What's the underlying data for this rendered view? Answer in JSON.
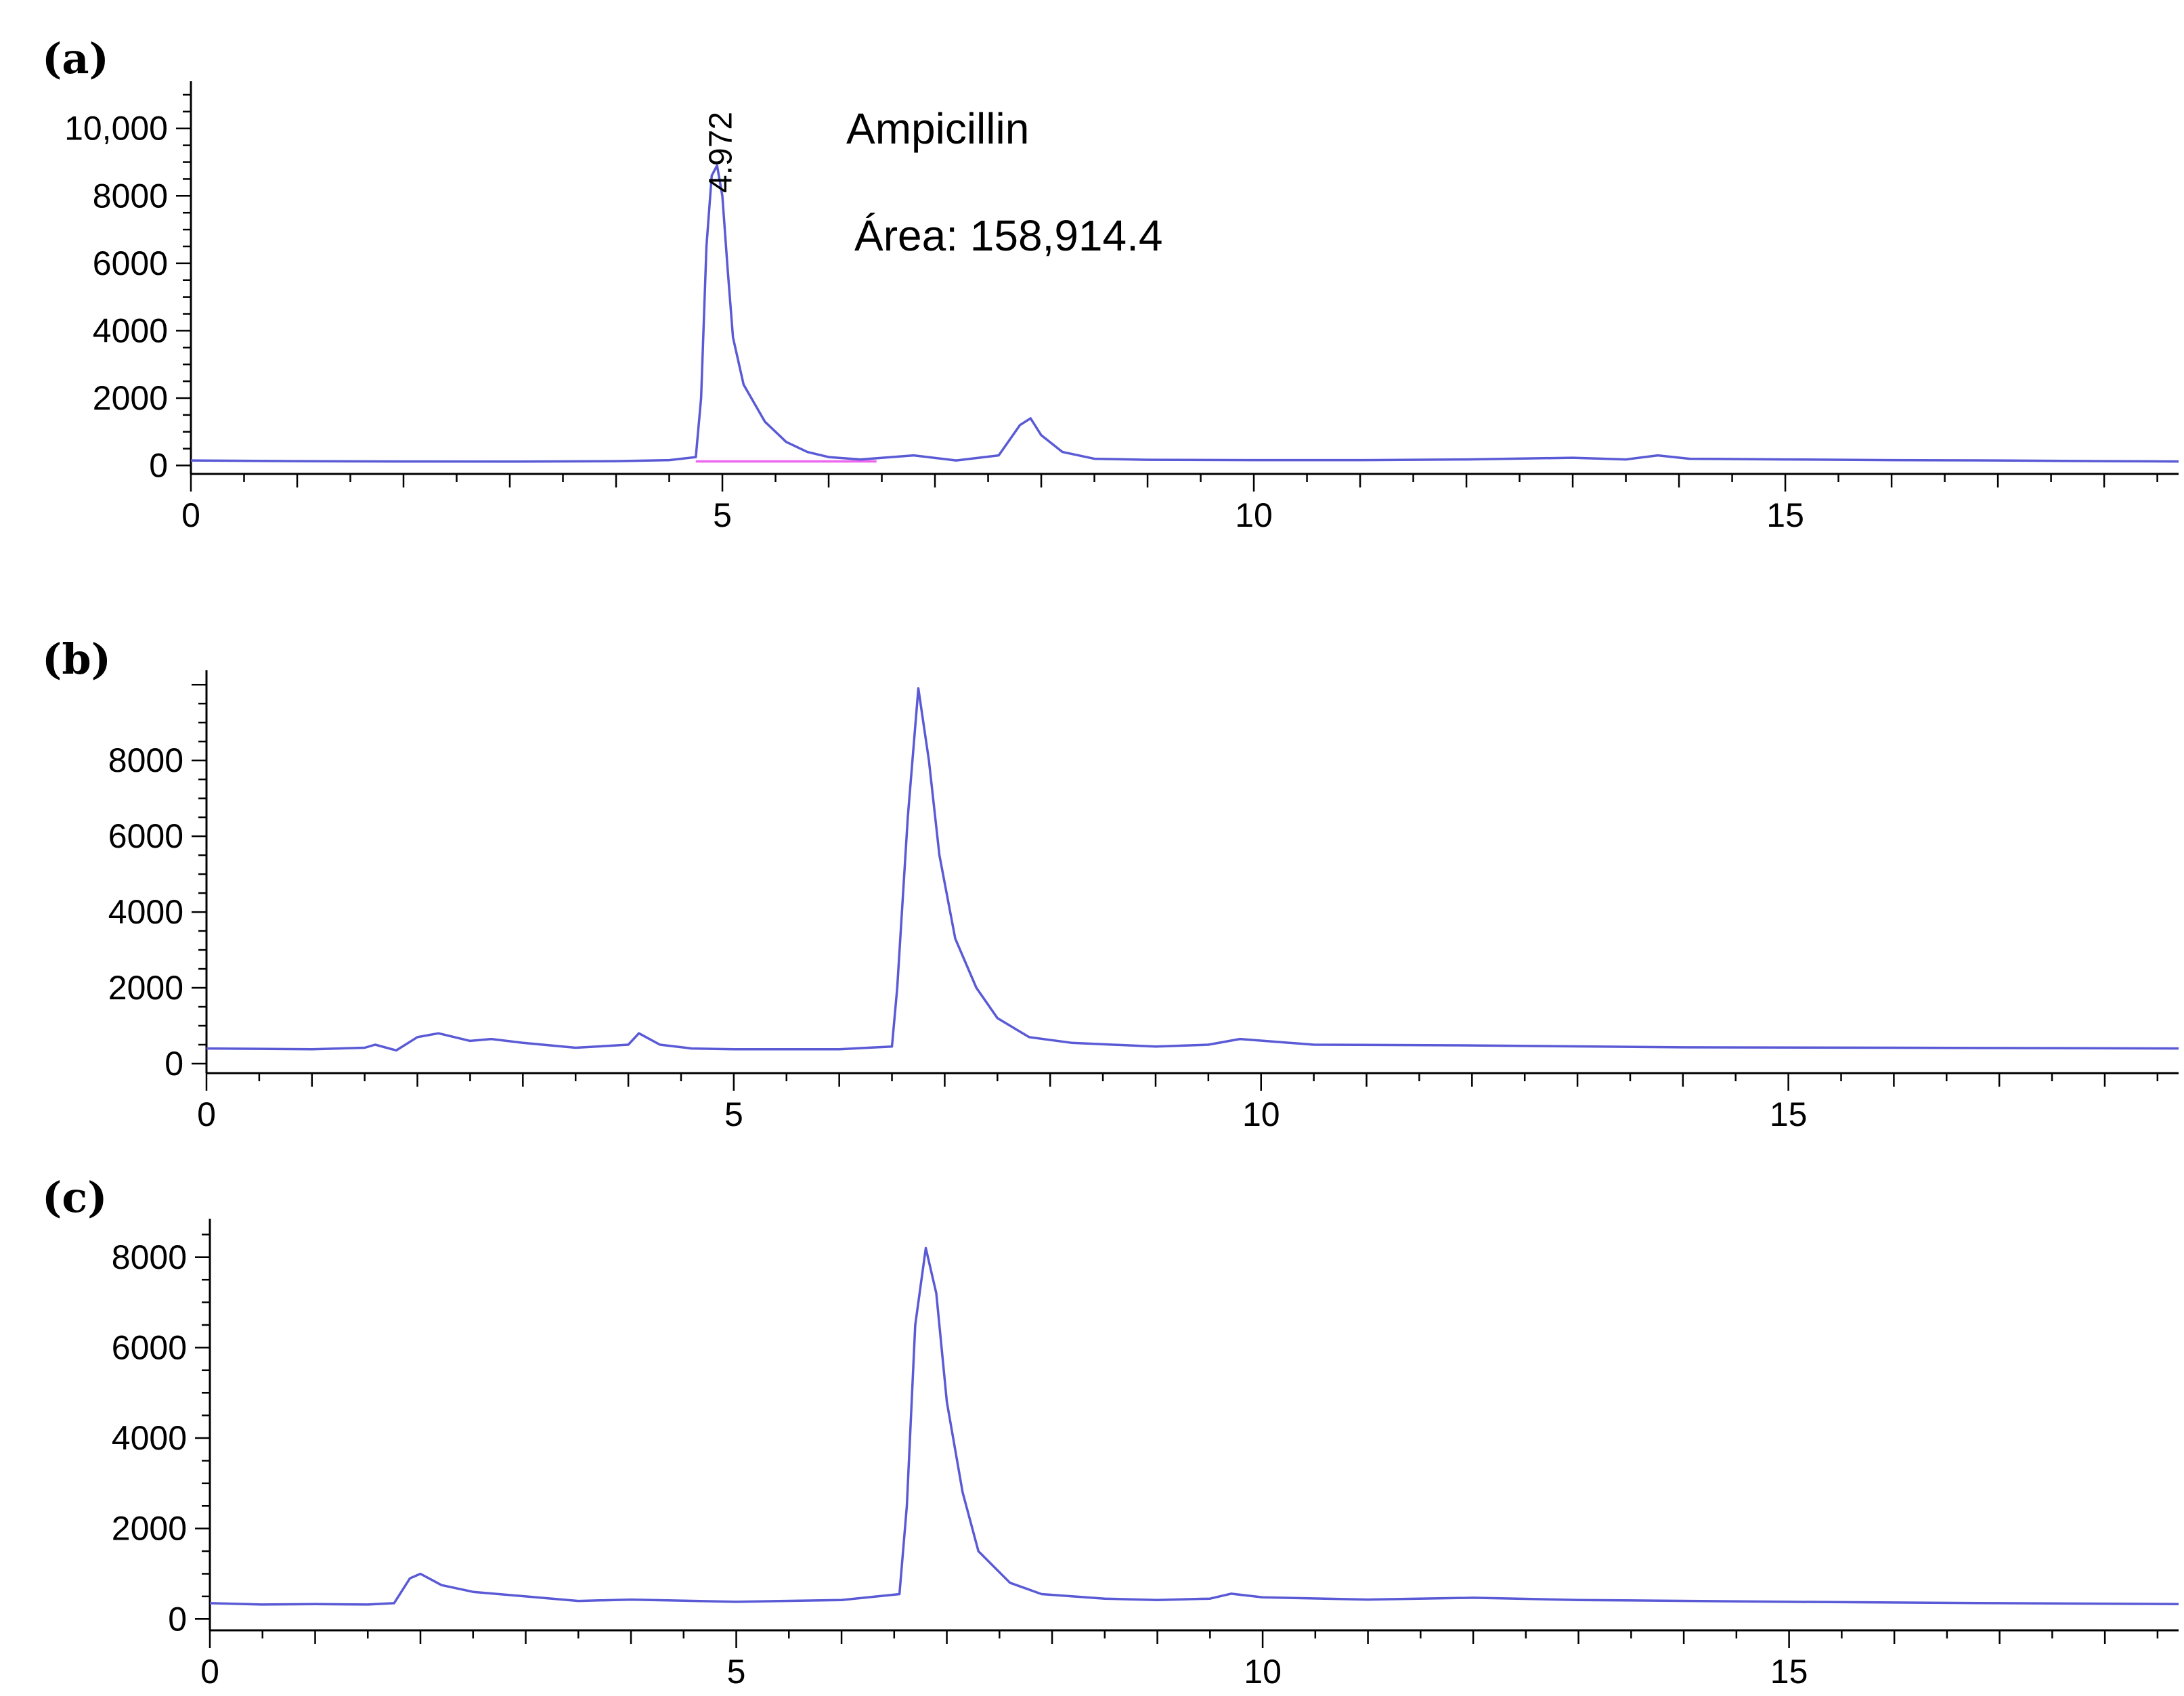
{
  "chart_data": [
    {
      "type": "line",
      "panel_label": "(a)",
      "annotation_title": "Ampicillin",
      "annotation_area": "Área: 158,914.4",
      "peak_label": "4.972",
      "peak_label_x": 4.972,
      "xlim": [
        0,
        18.7
      ],
      "ylim": [
        -250,
        11200
      ],
      "x_ticks": [
        0,
        5,
        10,
        15
      ],
      "x_tick_labels": [
        "0",
        "5",
        "10",
        "15"
      ],
      "y_ticks": [
        0,
        2000,
        4000,
        6000,
        8000,
        10000
      ],
      "y_tick_labels": [
        "0",
        "2000",
        "4000",
        "6000",
        "8000",
        "10,000"
      ],
      "integration_baseline": [
        4.75,
        6.45
      ],
      "series": [
        {
          "x": [
            0,
            1,
            2,
            3,
            4,
            4.5,
            4.75,
            4.8,
            4.85,
            4.9,
            4.95,
            5.0,
            5.05,
            5.1,
            5.2,
            5.4,
            5.6,
            5.8,
            6.0,
            6.3,
            6.8,
            7.2,
            7.6,
            7.8,
            7.9,
            8.0,
            8.2,
            8.5,
            9.0,
            10.0,
            11.0,
            12.0,
            13.0,
            13.5,
            13.8,
            14.1,
            15.0,
            16.0,
            17.0,
            18.0,
            18.7
          ],
          "y": [
            150,
            130,
            120,
            115,
            130,
            160,
            250,
            2000,
            6500,
            8600,
            8900,
            8000,
            5800,
            3800,
            2400,
            1300,
            700,
            400,
            250,
            180,
            300,
            150,
            300,
            1200,
            1400,
            900,
            400,
            200,
            170,
            160,
            160,
            180,
            230,
            180,
            300,
            200,
            180,
            160,
            150,
            130,
            120
          ]
        }
      ]
    },
    {
      "type": "line",
      "panel_label": "(b)",
      "xlim": [
        0,
        18.7
      ],
      "ylim": [
        -250,
        10200
      ],
      "x_ticks": [
        0,
        5,
        10,
        15
      ],
      "x_tick_labels": [
        "0",
        "5",
        "10",
        "15"
      ],
      "y_ticks": [
        0,
        2000,
        4000,
        6000,
        8000
      ],
      "y_tick_labels": [
        "0",
        "2000",
        "4000",
        "6000",
        "8000"
      ],
      "series": [
        {
          "x": [
            0,
            1,
            1.5,
            1.6,
            1.8,
            2.0,
            2.2,
            2.5,
            2.7,
            3.0,
            3.5,
            4.0,
            4.1,
            4.3,
            4.6,
            5.0,
            6.0,
            6.5,
            6.55,
            6.65,
            6.75,
            6.85,
            6.95,
            7.1,
            7.3,
            7.5,
            7.8,
            8.2,
            9.0,
            9.5,
            9.8,
            10.5,
            12.0,
            14.0,
            16.0,
            18.7
          ],
          "y": [
            400,
            380,
            420,
            500,
            350,
            700,
            800,
            600,
            650,
            550,
            420,
            500,
            800,
            500,
            400,
            380,
            380,
            450,
            2000,
            6500,
            9900,
            8000,
            5500,
            3300,
            2000,
            1200,
            700,
            550,
            450,
            500,
            650,
            500,
            480,
            430,
            420,
            400
          ]
        }
      ]
    },
    {
      "type": "line",
      "panel_label": "(c)",
      "xlim": [
        0,
        18.7
      ],
      "ylim": [
        -250,
        8700
      ],
      "x_ticks": [
        0,
        5,
        10,
        15
      ],
      "x_tick_labels": [
        "0",
        "5",
        "10",
        "15"
      ],
      "y_ticks": [
        0,
        2000,
        4000,
        6000,
        8000
      ],
      "y_tick_labels": [
        "0",
        "2000",
        "4000",
        "6000",
        "8000"
      ],
      "series": [
        {
          "x": [
            0,
            0.5,
            1.0,
            1.5,
            1.75,
            1.9,
            2.0,
            2.2,
            2.5,
            3.0,
            3.5,
            4.0,
            5.0,
            6.0,
            6.55,
            6.62,
            6.7,
            6.8,
            6.9,
            7.0,
            7.15,
            7.3,
            7.6,
            7.9,
            8.5,
            9.0,
            9.5,
            9.7,
            10.0,
            11.0,
            12.0,
            13.0,
            15.0,
            17.0,
            18.7
          ],
          "y": [
            350,
            320,
            330,
            320,
            350,
            900,
            1000,
            750,
            600,
            500,
            400,
            430,
            380,
            420,
            550,
            2500,
            6500,
            8200,
            7200,
            4800,
            2800,
            1500,
            800,
            550,
            450,
            420,
            450,
            560,
            480,
            430,
            470,
            420,
            380,
            350,
            330
          ]
        }
      ]
    }
  ]
}
